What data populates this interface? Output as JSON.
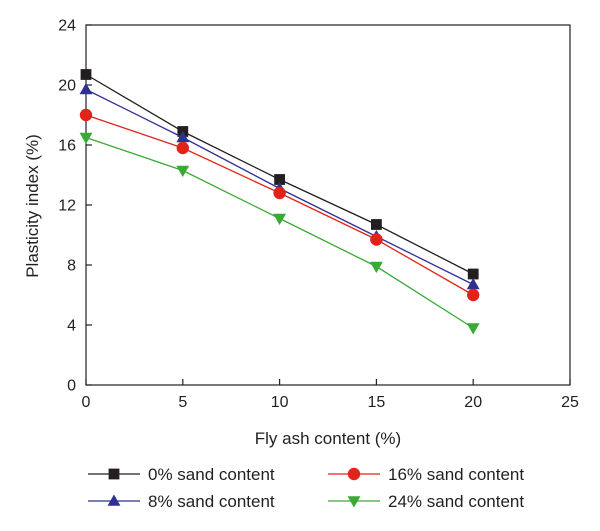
{
  "chart_data": {
    "type": "line",
    "title": "",
    "xlabel": "Fly ash content (%)",
    "ylabel": "Plasticity index (%)",
    "xlim": [
      0,
      25
    ],
    "ylim": [
      0,
      24
    ],
    "xticks": [
      0,
      5,
      10,
      15,
      20,
      25
    ],
    "yticks": [
      0,
      4,
      8,
      12,
      16,
      20,
      24
    ],
    "grid": false,
    "legend_position": "bottom",
    "x": [
      0,
      5,
      10,
      15,
      20
    ],
    "series": [
      {
        "name": "0% sand content",
        "values": [
          20.7,
          16.9,
          13.7,
          10.7,
          7.4
        ],
        "color": "#231f20",
        "marker": "square"
      },
      {
        "name": "8% sand content",
        "values": [
          19.7,
          16.5,
          13.1,
          9.9,
          6.7
        ],
        "color": "#2e3192",
        "marker": "triangle-up"
      },
      {
        "name": "16% sand content",
        "values": [
          18.0,
          15.8,
          12.8,
          9.7,
          6.0
        ],
        "color": "#e2231a",
        "marker": "circle"
      },
      {
        "name": "24% sand content",
        "values": [
          16.5,
          14.3,
          11.1,
          7.9,
          3.8
        ],
        "color": "#3aaa35",
        "marker": "triangle-down"
      }
    ]
  }
}
